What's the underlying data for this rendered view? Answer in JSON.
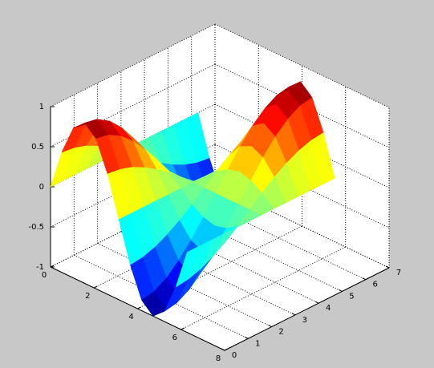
{
  "chart_data": {
    "type": "surface",
    "colormap": "jet",
    "grid": true,
    "x": [
      0,
      0.52,
      1.05,
      1.57,
      2.09,
      2.62,
      3.14,
      3.67,
      4.19,
      4.71,
      5.24,
      5.76,
      6.28
    ],
    "y": [
      0,
      0.52,
      1.05,
      1.57,
      2.09,
      2.62,
      3.14,
      3.67,
      4.19,
      4.71,
      5.24,
      5.76,
      6.28
    ],
    "z": [
      [
        0,
        0.5,
        0.87,
        1,
        0.87,
        0.5,
        0,
        -0.5,
        -0.87,
        -1,
        -0.87,
        -0.5,
        0
      ],
      [
        0,
        0.48,
        0.84,
        0.97,
        0.84,
        0.48,
        0,
        -0.48,
        -0.84,
        -0.97,
        -0.84,
        -0.48,
        0
      ],
      [
        0,
        0.43,
        0.75,
        0.87,
        0.75,
        0.43,
        0,
        -0.43,
        -0.75,
        -0.87,
        -0.75,
        -0.43,
        0
      ],
      [
        0,
        0.35,
        0.61,
        0.71,
        0.61,
        0.35,
        0,
        -0.35,
        -0.61,
        -0.71,
        -0.61,
        -0.35,
        0
      ],
      [
        0,
        0.25,
        0.43,
        0.5,
        0.43,
        0.25,
        0,
        -0.25,
        -0.43,
        -0.5,
        -0.43,
        -0.25,
        0
      ],
      [
        0,
        0.13,
        0.22,
        0.26,
        0.22,
        0.13,
        0,
        -0.13,
        -0.22,
        -0.26,
        -0.22,
        -0.13,
        0
      ],
      [
        0,
        0,
        0,
        0,
        0,
        0,
        0,
        0,
        0,
        0,
        0,
        0,
        0
      ],
      [
        0,
        -0.13,
        -0.22,
        -0.26,
        -0.22,
        -0.13,
        0,
        0.13,
        0.22,
        0.26,
        0.22,
        0.13,
        0
      ],
      [
        0,
        -0.25,
        -0.43,
        -0.5,
        -0.43,
        -0.25,
        0,
        0.25,
        0.43,
        0.5,
        0.43,
        0.25,
        0
      ],
      [
        0,
        -0.35,
        -0.61,
        -0.71,
        -0.61,
        -0.35,
        0,
        0.35,
        0.61,
        0.71,
        0.61,
        0.35,
        0
      ],
      [
        0,
        -0.43,
        -0.75,
        -0.87,
        -0.75,
        -0.43,
        0,
        0.43,
        0.75,
        0.87,
        0.75,
        0.43,
        0
      ],
      [
        0,
        -0.48,
        -0.84,
        -0.97,
        -0.84,
        -0.48,
        0,
        0.48,
        0.84,
        0.97,
        0.84,
        0.48,
        0
      ],
      [
        0,
        -0.5,
        -0.87,
        -1,
        -0.87,
        -0.5,
        0,
        0.5,
        0.87,
        1,
        0.87,
        0.5,
        0
      ]
    ],
    "xlim": [
      0,
      8
    ],
    "xticks": [
      0,
      2,
      4,
      6,
      8
    ],
    "ylim": [
      0,
      7
    ],
    "yticks": [
      0,
      1,
      2,
      3,
      4,
      5,
      6,
      7
    ],
    "zlim": [
      -1,
      1
    ],
    "zticks": [
      -1,
      -0.5,
      0,
      0.5,
      1
    ]
  }
}
